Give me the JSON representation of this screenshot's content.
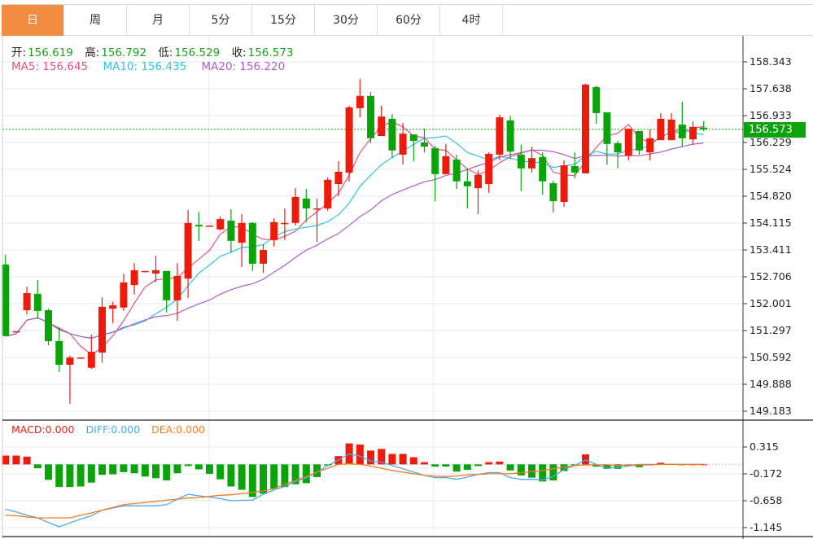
{
  "tabs": [
    {
      "label": "日",
      "active": true
    },
    {
      "label": "周"
    },
    {
      "label": "月"
    },
    {
      "label": "5分"
    },
    {
      "label": "15分"
    },
    {
      "label": "30分"
    },
    {
      "label": "60分"
    },
    {
      "label": "4时"
    }
  ],
  "ohlc_info": {
    "open_label": "开:",
    "open": "156.619",
    "high_label": "高:",
    "high": "156.792",
    "low_label": "低:",
    "low": "156.529",
    "close_label": "收:",
    "close": "156.573"
  },
  "ma_info": {
    "ma5": "MA5: 156.645",
    "ma10": "MA10: 156.435",
    "ma20": "MA20: 156.220"
  },
  "macd_info": {
    "macd": "MACD:0.000",
    "diff": "DIFF:0.000",
    "dea": "DEA:0.000"
  },
  "current_price": "156.573",
  "colors": {
    "up": "#f01a0a",
    "down": "#0aa30a",
    "ma5": "#e8507a",
    "ma10": "#2fc3dc",
    "ma20": "#b05cc8",
    "diff": "#4aa8ee",
    "dea": "#f57a20",
    "tab_active": "#f28c40"
  },
  "chart_data": [
    {
      "type": "candlestick",
      "price_axis_ticks": [
        "158.343",
        "157.638",
        "156.933",
        "156.229",
        "155.524",
        "154.820",
        "154.115",
        "153.411",
        "152.706",
        "152.001",
        "151.297",
        "150.592",
        "149.888",
        "149.183"
      ],
      "ylim": [
        149.183,
        158.343
      ],
      "grid": true,
      "ma_periods": [
        5,
        10,
        20
      ],
      "ohlc": [
        [
          153.03,
          153.28,
          151.15,
          151.15
        ],
        [
          151.28,
          151.28,
          151.28,
          151.28
        ],
        [
          151.83,
          152.45,
          151.72,
          152.28
        ],
        [
          152.26,
          152.62,
          151.6,
          151.81
        ],
        [
          151.83,
          151.87,
          150.91,
          151.02
        ],
        [
          151.02,
          151.38,
          150.21,
          150.4
        ],
        [
          150.4,
          150.64,
          149.38,
          150.59
        ],
        [
          150.59,
          150.59,
          150.59,
          150.59
        ],
        [
          150.32,
          151.19,
          150.29,
          150.74
        ],
        [
          150.72,
          152.17,
          150.46,
          151.92
        ],
        [
          151.87,
          152.05,
          151.49,
          151.96
        ],
        [
          151.9,
          152.79,
          151.81,
          152.56
        ],
        [
          152.49,
          153.07,
          152.24,
          152.88
        ],
        [
          152.86,
          152.86,
          152.86,
          152.86
        ],
        [
          152.79,
          153.26,
          152.56,
          152.88
        ],
        [
          152.86,
          152.86,
          151.77,
          152.09
        ],
        [
          152.09,
          153.07,
          151.55,
          152.73
        ],
        [
          152.66,
          154.46,
          152.15,
          154.12
        ],
        [
          154.07,
          154.41,
          153.65,
          154.03
        ],
        [
          154.05,
          154.05,
          154.05,
          154.05
        ],
        [
          153.95,
          154.29,
          153.92,
          154.22
        ],
        [
          154.18,
          154.48,
          153.35,
          153.65
        ],
        [
          153.6,
          154.35,
          152.96,
          154.12
        ],
        [
          154.12,
          154.14,
          152.86,
          153.05
        ],
        [
          153.05,
          153.56,
          152.81,
          153.41
        ],
        [
          153.67,
          154.24,
          153.5,
          154.14
        ],
        [
          154.12,
          154.5,
          153.67,
          154.12
        ],
        [
          154.12,
          155.03,
          154.05,
          154.8
        ],
        [
          154.76,
          155.01,
          154.14,
          154.5
        ],
        [
          154.5,
          154.76,
          153.62,
          154.5
        ],
        [
          154.5,
          155.31,
          154.44,
          155.25
        ],
        [
          155.14,
          155.74,
          154.82,
          155.46
        ],
        [
          155.44,
          157.19,
          155.21,
          157.15
        ],
        [
          157.13,
          157.89,
          156.89,
          157.45
        ],
        [
          157.45,
          157.55,
          156.21,
          156.34
        ],
        [
          156.4,
          157.19,
          156.4,
          156.91
        ],
        [
          156.85,
          156.98,
          155.82,
          156.02
        ],
        [
          155.91,
          156.74,
          155.65,
          156.46
        ],
        [
          156.44,
          156.44,
          155.74,
          156.27
        ],
        [
          156.23,
          156.59,
          155.97,
          156.12
        ],
        [
          156.08,
          156.14,
          154.69,
          155.4
        ],
        [
          155.4,
          156.19,
          155.4,
          155.87
        ],
        [
          155.78,
          155.91,
          155.01,
          155.21
        ],
        [
          155.21,
          155.55,
          154.5,
          155.08
        ],
        [
          155.03,
          155.5,
          154.35,
          155.38
        ],
        [
          155.14,
          155.97,
          154.91,
          155.93
        ],
        [
          155.91,
          156.96,
          155.76,
          156.89
        ],
        [
          156.81,
          156.93,
          155.8,
          155.99
        ],
        [
          155.91,
          156.17,
          154.95,
          155.55
        ],
        [
          155.55,
          156.12,
          155.44,
          155.82
        ],
        [
          155.85,
          155.97,
          154.86,
          155.21
        ],
        [
          155.16,
          155.23,
          154.39,
          154.69
        ],
        [
          154.67,
          155.76,
          154.54,
          155.63
        ],
        [
          155.61,
          155.97,
          155.29,
          155.44
        ],
        [
          155.42,
          157.77,
          155.42,
          157.75
        ],
        [
          157.68,
          157.72,
          156.72,
          157.0
        ],
        [
          157.02,
          157.02,
          155.65,
          156.19
        ],
        [
          156.21,
          156.27,
          155.55,
          155.97
        ],
        [
          155.89,
          156.59,
          155.76,
          156.59
        ],
        [
          156.53,
          156.53,
          155.91,
          156.02
        ],
        [
          155.97,
          156.57,
          155.76,
          156.34
        ],
        [
          156.29,
          157.0,
          156.29,
          156.85
        ],
        [
          156.29,
          157.0,
          156.29,
          156.83
        ],
        [
          156.7,
          157.3,
          156.12,
          156.34
        ],
        [
          156.31,
          156.78,
          156.17,
          156.64
        ],
        [
          156.619,
          156.792,
          156.529,
          156.573
        ]
      ]
    },
    {
      "type": "bar+line",
      "axis_ticks": [
        "0.315",
        "-0.172",
        "-0.658",
        "-1.145"
      ],
      "ylim": [
        -1.145,
        0.315
      ],
      "macd_hist": [
        0.16,
        0.16,
        0.14,
        -0.07,
        -0.28,
        -0.41,
        -0.41,
        -0.4,
        -0.33,
        -0.19,
        -0.18,
        -0.14,
        -0.16,
        -0.22,
        -0.25,
        -0.29,
        -0.16,
        -0.03,
        -0.09,
        -0.17,
        -0.27,
        -0.4,
        -0.46,
        -0.59,
        -0.53,
        -0.44,
        -0.41,
        -0.36,
        -0.34,
        -0.23,
        -0.02,
        0.15,
        0.38,
        0.36,
        0.25,
        0.28,
        0.19,
        0.19,
        0.13,
        0.04,
        -0.04,
        -0.04,
        -0.13,
        -0.1,
        -0.03,
        0.04,
        0.05,
        -0.11,
        -0.2,
        -0.24,
        -0.31,
        -0.29,
        -0.12,
        -0.01,
        0.18,
        -0.04,
        -0.08,
        -0.08,
        -0.03,
        -0.05,
        -0.01,
        0.03,
        0.01,
        -0.01,
        0.0,
        0.0
      ],
      "diff": [
        -0.81,
        -0.86,
        -0.92,
        -0.97,
        -1.05,
        -1.13,
        -1.06,
        -0.99,
        -0.93,
        -0.83,
        -0.79,
        -0.75,
        -0.75,
        -0.75,
        -0.75,
        -0.73,
        -0.63,
        -0.54,
        -0.57,
        -0.59,
        -0.62,
        -0.66,
        -0.65,
        -0.65,
        -0.54,
        -0.46,
        -0.4,
        -0.31,
        -0.24,
        -0.14,
        -0.02,
        0.08,
        0.19,
        0.15,
        0.06,
        0.04,
        -0.02,
        -0.08,
        -0.14,
        -0.2,
        -0.24,
        -0.24,
        -0.27,
        -0.23,
        -0.18,
        -0.15,
        -0.15,
        -0.24,
        -0.27,
        -0.27,
        -0.28,
        -0.22,
        -0.09,
        -0.02,
        0.08,
        0.0,
        -0.07,
        -0.05,
        -0.03,
        0.0,
        0.0,
        0.0,
        0.0,
        0.0,
        0.0,
        0.0
      ],
      "dea": [
        -0.92,
        -0.93,
        -0.95,
        -0.97,
        -0.97,
        -0.97,
        -0.97,
        -0.92,
        -0.88,
        -0.83,
        -0.78,
        -0.73,
        -0.71,
        -0.69,
        -0.67,
        -0.65,
        -0.63,
        -0.61,
        -0.6,
        -0.58,
        -0.56,
        -0.55,
        -0.53,
        -0.51,
        -0.48,
        -0.44,
        -0.36,
        -0.29,
        -0.22,
        -0.14,
        -0.07,
        0.0,
        0.01,
        0.0,
        -0.03,
        -0.07,
        -0.11,
        -0.14,
        -0.17,
        -0.2,
        -0.21,
        -0.22,
        -0.21,
        -0.19,
        -0.18,
        -0.17,
        -0.17,
        -0.17,
        -0.15,
        -0.13,
        -0.11,
        -0.08,
        -0.05,
        -0.02,
        -0.01,
        -0.01,
        -0.01,
        -0.02,
        -0.01,
        -0.01,
        -0.01,
        0.0,
        0.0,
        0.0,
        0.0,
        0.0
      ]
    }
  ]
}
